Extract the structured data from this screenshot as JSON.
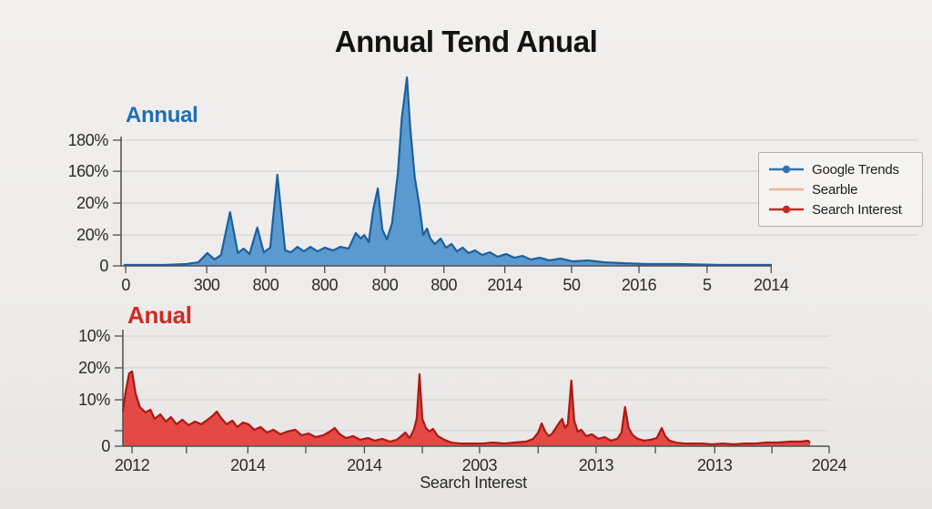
{
  "title": "Annual Tend Anual",
  "legend": {
    "items": [
      {
        "label": "Google Trends",
        "color": "#2d74ae",
        "marker": "line-dot"
      },
      {
        "label": "Searble",
        "color": "#eeb49e",
        "marker": "line"
      },
      {
        "label": "Search Interest",
        "color": "#c22b26",
        "marker": "line-dot"
      }
    ]
  },
  "chart_data": [
    {
      "type": "area",
      "series_label": "Annual",
      "legend_entry": "Google Trends",
      "label_color": "#1f6eb5",
      "fill_color": "#4d92cc",
      "line_color": "#1c5f9f",
      "grid": true,
      "y_ticks": [
        {
          "label": "0",
          "f": 0.0
        },
        {
          "label": "20%",
          "f": 0.164
        },
        {
          "label": "20%",
          "f": 0.333
        },
        {
          "label": "160%",
          "f": 0.502
        },
        {
          "label": "180%",
          "f": 0.667
        }
      ],
      "x_ticks": [
        {
          "label": "0",
          "f": 0.003
        },
        {
          "label": "300",
          "f": 0.128
        },
        {
          "label": "800",
          "f": 0.219
        },
        {
          "label": "800",
          "f": 0.31
        },
        {
          "label": "800",
          "f": 0.403
        },
        {
          "label": "800",
          "f": 0.494
        },
        {
          "label": "2014",
          "f": 0.588
        },
        {
          "label": "50",
          "f": 0.691
        },
        {
          "label": "2016",
          "f": 0.795
        },
        {
          "label": "5",
          "f": 0.9
        },
        {
          "label": "2014",
          "f": 0.999
        }
      ],
      "points": [
        [
          0.0,
          0.005
        ],
        [
          0.062,
          0.005
        ],
        [
          0.097,
          0.01
        ],
        [
          0.115,
          0.019
        ],
        [
          0.129,
          0.068
        ],
        [
          0.14,
          0.034
        ],
        [
          0.15,
          0.058
        ],
        [
          0.164,
          0.285
        ],
        [
          0.176,
          0.068
        ],
        [
          0.185,
          0.092
        ],
        [
          0.194,
          0.063
        ],
        [
          0.206,
          0.203
        ],
        [
          0.216,
          0.072
        ],
        [
          0.226,
          0.097
        ],
        [
          0.237,
          0.483
        ],
        [
          0.249,
          0.082
        ],
        [
          0.258,
          0.072
        ],
        [
          0.268,
          0.101
        ],
        [
          0.278,
          0.077
        ],
        [
          0.288,
          0.101
        ],
        [
          0.299,
          0.077
        ],
        [
          0.31,
          0.097
        ],
        [
          0.323,
          0.082
        ],
        [
          0.334,
          0.101
        ],
        [
          0.347,
          0.092
        ],
        [
          0.358,
          0.174
        ],
        [
          0.366,
          0.145
        ],
        [
          0.371,
          0.164
        ],
        [
          0.378,
          0.126
        ],
        [
          0.385,
          0.3
        ],
        [
          0.392,
          0.411
        ],
        [
          0.399,
          0.193
        ],
        [
          0.406,
          0.14
        ],
        [
          0.414,
          0.227
        ],
        [
          0.423,
          0.493
        ],
        [
          0.429,
          0.783
        ],
        [
          0.437,
          1.0
        ],
        [
          0.442,
          0.734
        ],
        [
          0.449,
          0.469
        ],
        [
          0.456,
          0.324
        ],
        [
          0.462,
          0.164
        ],
        [
          0.468,
          0.198
        ],
        [
          0.473,
          0.145
        ],
        [
          0.48,
          0.116
        ],
        [
          0.489,
          0.145
        ],
        [
          0.497,
          0.097
        ],
        [
          0.506,
          0.116
        ],
        [
          0.514,
          0.077
        ],
        [
          0.523,
          0.097
        ],
        [
          0.532,
          0.068
        ],
        [
          0.542,
          0.082
        ],
        [
          0.553,
          0.058
        ],
        [
          0.565,
          0.072
        ],
        [
          0.577,
          0.048
        ],
        [
          0.59,
          0.063
        ],
        [
          0.603,
          0.043
        ],
        [
          0.615,
          0.053
        ],
        [
          0.628,
          0.034
        ],
        [
          0.642,
          0.043
        ],
        [
          0.657,
          0.029
        ],
        [
          0.674,
          0.039
        ],
        [
          0.693,
          0.024
        ],
        [
          0.716,
          0.029
        ],
        [
          0.742,
          0.019
        ],
        [
          0.773,
          0.014
        ],
        [
          0.808,
          0.01
        ],
        [
          0.857,
          0.01
        ],
        [
          0.921,
          0.005
        ],
        [
          1.0,
          0.005
        ]
      ]
    },
    {
      "type": "area",
      "series_label": "Anual",
      "legend_entry": "Search Interest",
      "label_color": "#ce2b26",
      "fill_color": "#e23c38",
      "line_color": "#b01713",
      "grid": true,
      "xlabel": "Search Interest",
      "y_ticks": [
        {
          "label": "0",
          "f": 0.0
        },
        {
          "label": "",
          "f": 0.133
        },
        {
          "label": "10%",
          "f": 0.398
        },
        {
          "label": "20%",
          "f": 0.672
        },
        {
          "label": "10%",
          "f": 0.945
        }
      ],
      "x_ticks": [
        {
          "label": "2012",
          "f": 0.013
        },
        {
          "label": "",
          "f": 0.09
        },
        {
          "label": "2014",
          "f": 0.177
        },
        {
          "label": "",
          "f": 0.259
        },
        {
          "label": "2014",
          "f": 0.342
        },
        {
          "label": "",
          "f": 0.424
        },
        {
          "label": "2003",
          "f": 0.505
        },
        {
          "label": "",
          "f": 0.588
        },
        {
          "label": "2013",
          "f": 0.67
        },
        {
          "label": "",
          "f": 0.754
        },
        {
          "label": "2013",
          "f": 0.838
        },
        {
          "label": "",
          "f": 0.919
        },
        {
          "label": "2024",
          "f": 1.0
        }
      ],
      "points": [
        [
          0.0,
          0.297
        ],
        [
          0.004,
          0.469
        ],
        [
          0.009,
          0.625
        ],
        [
          0.013,
          0.641
        ],
        [
          0.018,
          0.453
        ],
        [
          0.024,
          0.336
        ],
        [
          0.032,
          0.289
        ],
        [
          0.039,
          0.313
        ],
        [
          0.045,
          0.234
        ],
        [
          0.053,
          0.273
        ],
        [
          0.061,
          0.211
        ],
        [
          0.068,
          0.25
        ],
        [
          0.076,
          0.188
        ],
        [
          0.084,
          0.227
        ],
        [
          0.093,
          0.18
        ],
        [
          0.102,
          0.211
        ],
        [
          0.111,
          0.188
        ],
        [
          0.12,
          0.227
        ],
        [
          0.128,
          0.266
        ],
        [
          0.133,
          0.297
        ],
        [
          0.139,
          0.242
        ],
        [
          0.147,
          0.188
        ],
        [
          0.155,
          0.219
        ],
        [
          0.162,
          0.164
        ],
        [
          0.17,
          0.203
        ],
        [
          0.178,
          0.188
        ],
        [
          0.186,
          0.141
        ],
        [
          0.195,
          0.164
        ],
        [
          0.204,
          0.117
        ],
        [
          0.213,
          0.141
        ],
        [
          0.223,
          0.102
        ],
        [
          0.233,
          0.125
        ],
        [
          0.244,
          0.141
        ],
        [
          0.253,
          0.094
        ],
        [
          0.263,
          0.109
        ],
        [
          0.273,
          0.078
        ],
        [
          0.284,
          0.094
        ],
        [
          0.293,
          0.125
        ],
        [
          0.3,
          0.156
        ],
        [
          0.307,
          0.102
        ],
        [
          0.316,
          0.07
        ],
        [
          0.326,
          0.086
        ],
        [
          0.336,
          0.055
        ],
        [
          0.347,
          0.07
        ],
        [
          0.357,
          0.047
        ],
        [
          0.367,
          0.063
        ],
        [
          0.378,
          0.039
        ],
        [
          0.388,
          0.055
        ],
        [
          0.394,
          0.086
        ],
        [
          0.4,
          0.117
        ],
        [
          0.406,
          0.07
        ],
        [
          0.412,
          0.141
        ],
        [
          0.416,
          0.234
        ],
        [
          0.42,
          0.617
        ],
        [
          0.424,
          0.234
        ],
        [
          0.429,
          0.156
        ],
        [
          0.434,
          0.125
        ],
        [
          0.439,
          0.148
        ],
        [
          0.446,
          0.086
        ],
        [
          0.455,
          0.055
        ],
        [
          0.465,
          0.031
        ],
        [
          0.478,
          0.023
        ],
        [
          0.494,
          0.023
        ],
        [
          0.509,
          0.023
        ],
        [
          0.524,
          0.031
        ],
        [
          0.54,
          0.023
        ],
        [
          0.555,
          0.031
        ],
        [
          0.571,
          0.039
        ],
        [
          0.581,
          0.063
        ],
        [
          0.588,
          0.117
        ],
        [
          0.593,
          0.195
        ],
        [
          0.598,
          0.125
        ],
        [
          0.603,
          0.086
        ],
        [
          0.608,
          0.109
        ],
        [
          0.613,
          0.156
        ],
        [
          0.619,
          0.211
        ],
        [
          0.622,
          0.234
        ],
        [
          0.626,
          0.156
        ],
        [
          0.63,
          0.188
        ],
        [
          0.635,
          0.563
        ],
        [
          0.639,
          0.219
        ],
        [
          0.644,
          0.125
        ],
        [
          0.649,
          0.141
        ],
        [
          0.656,
          0.086
        ],
        [
          0.664,
          0.102
        ],
        [
          0.673,
          0.063
        ],
        [
          0.682,
          0.078
        ],
        [
          0.691,
          0.047
        ],
        [
          0.7,
          0.063
        ],
        [
          0.706,
          0.117
        ],
        [
          0.711,
          0.336
        ],
        [
          0.716,
          0.156
        ],
        [
          0.722,
          0.094
        ],
        [
          0.729,
          0.063
        ],
        [
          0.738,
          0.047
        ],
        [
          0.747,
          0.055
        ],
        [
          0.756,
          0.07
        ],
        [
          0.763,
          0.156
        ],
        [
          0.768,
          0.086
        ],
        [
          0.774,
          0.047
        ],
        [
          0.783,
          0.031
        ],
        [
          0.795,
          0.023
        ],
        [
          0.808,
          0.023
        ],
        [
          0.821,
          0.023
        ],
        [
          0.834,
          0.016
        ],
        [
          0.849,
          0.023
        ],
        [
          0.865,
          0.016
        ],
        [
          0.88,
          0.023
        ],
        [
          0.896,
          0.023
        ],
        [
          0.911,
          0.031
        ],
        [
          0.928,
          0.031
        ],
        [
          0.945,
          0.039
        ],
        [
          0.96,
          0.039
        ],
        [
          0.97,
          0.047
        ],
        [
          0.973,
          0.031
        ]
      ]
    }
  ]
}
